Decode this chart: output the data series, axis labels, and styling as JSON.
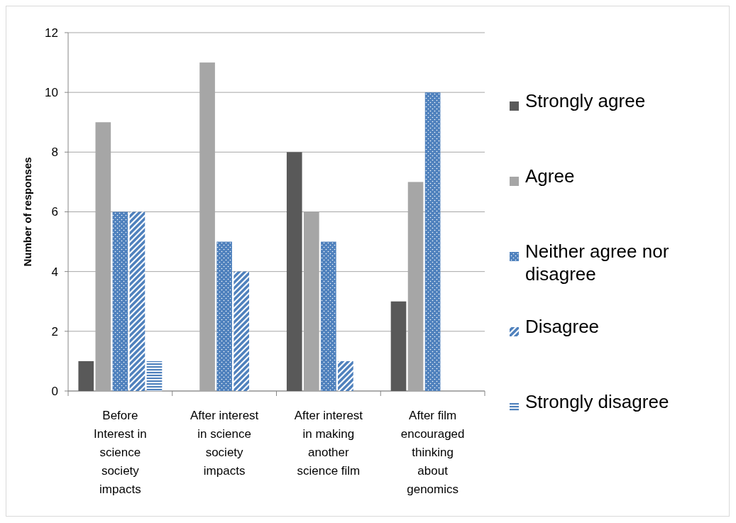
{
  "chart_data": {
    "type": "bar",
    "ylabel": "Number of responses",
    "categories": [
      "Before Interest in science society impacts",
      "After interest in science society impacts",
      "After interest in making another science film",
      "After film encouraged thinking about genomics"
    ],
    "series": [
      {
        "name": "Strongly agree",
        "color": "#595959",
        "values": [
          1,
          0,
          8,
          3
        ]
      },
      {
        "name": "Agree",
        "color": "#a6a6a6",
        "values": [
          9,
          11,
          6,
          7
        ]
      },
      {
        "name": "Neither agree nor disagree",
        "color": "#4f81bd",
        "values": [
          6,
          5,
          5,
          10
        ]
      },
      {
        "name": "Disagree",
        "color": "#4f81bd",
        "values": [
          6,
          4,
          1,
          0
        ]
      },
      {
        "name": "Strongly disagree",
        "color": "#4f81bd",
        "values": [
          1,
          0,
          0,
          0
        ]
      }
    ],
    "ylim": [
      0,
      12
    ],
    "yticks": [
      0,
      2,
      4,
      6,
      8,
      10,
      12
    ],
    "grid": "y",
    "legend": "right"
  }
}
